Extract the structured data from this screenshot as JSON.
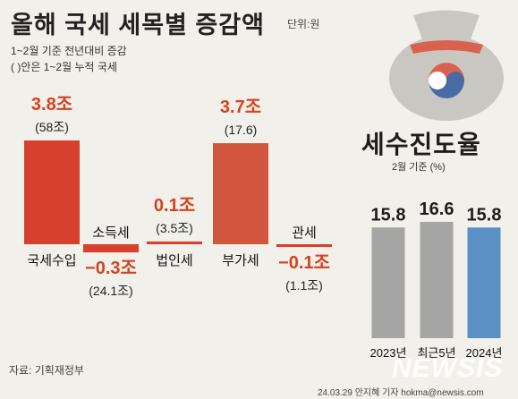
{
  "title": "올해 국세 세목별 증감액",
  "unit": "단위:원",
  "note1": "1~2월 기준 전년대비 증감",
  "note2": "( )안은 1~2월 누적 국세",
  "side_title": "세수진도율",
  "side_subtitle": "2월 기준 (%)",
  "source": "자료: 기획재정부",
  "credit": "24.03.29 안지혜 기자 hokma@newsis.com",
  "watermark": "NEWSIS",
  "colors": {
    "bar_main": "#d6402d",
    "bar_alt": "#d2563d",
    "value_label": "#d4421f",
    "gray_bar": "#a5a5a5",
    "blue_bar": "#5b90c4",
    "icon_bag": "#c9c7c2",
    "icon_ribbon": "#d9624e"
  },
  "icon": "money-bag-icon",
  "chart_data": [
    {
      "type": "bar",
      "categories": [
        "국세수입",
        "소득세",
        "법인세",
        "부가세",
        "관세"
      ],
      "values": [
        3.8,
        -0.3,
        0.1,
        3.7,
        -0.1
      ],
      "value_labels": [
        "3.8조",
        "−0.3조",
        "0.1조",
        "3.7조",
        "−0.1조"
      ],
      "cumulative_labels": [
        "(58조)",
        "(24.1조)",
        "(3.5조)",
        "(17.6)",
        "(1.1조)"
      ],
      "title": "올해 국세 세목별 증감액",
      "ylim": [
        -0.3,
        3.8
      ]
    },
    {
      "type": "bar",
      "categories": [
        "2023년",
        "최근5년",
        "2024년"
      ],
      "values": [
        15.8,
        16.6,
        15.8
      ],
      "value_labels": [
        "15.8",
        "16.6",
        "15.8"
      ],
      "title": "세수진도율",
      "ylim": [
        0,
        16.6
      ]
    }
  ]
}
